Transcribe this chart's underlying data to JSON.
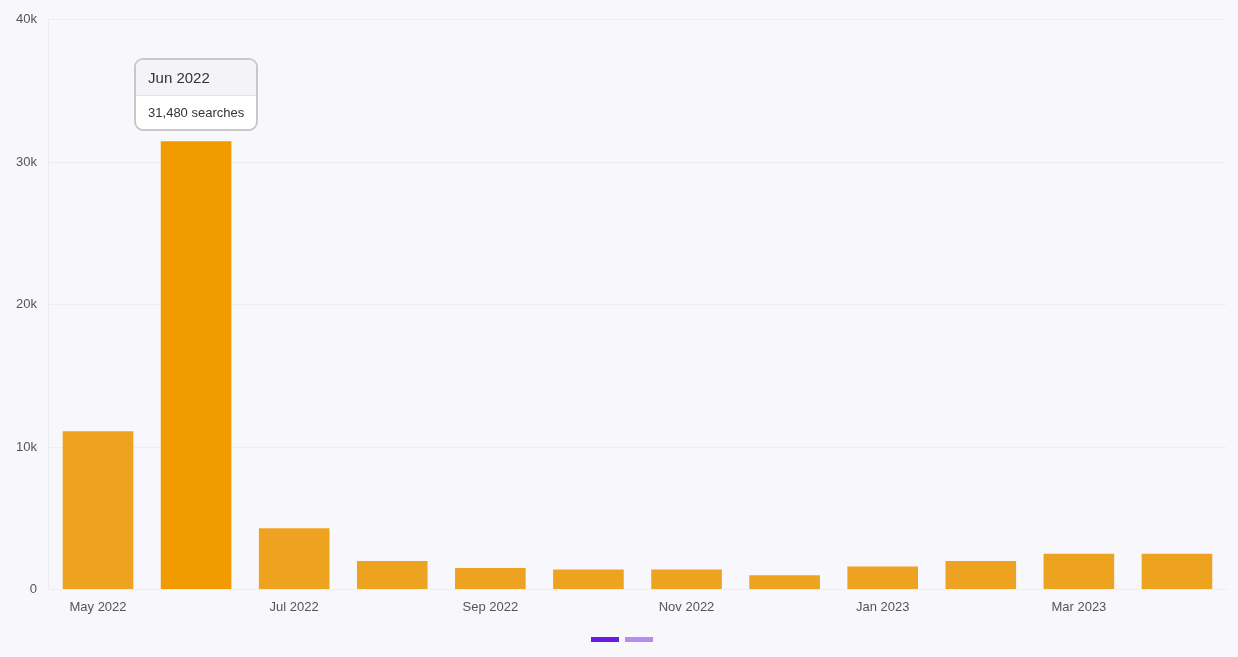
{
  "chart_data": {
    "type": "bar",
    "categories": [
      "May 2022",
      null,
      "Jul 2022",
      null,
      "Sep 2022",
      null,
      "Nov 2022",
      null,
      "Jan 2023",
      null,
      "Mar 2023",
      null
    ],
    "values": [
      11100,
      31480,
      4300,
      2000,
      1500,
      1400,
      1400,
      1000,
      1600,
      2000,
      2500,
      2500
    ],
    "colors": [
      "#eea320",
      "#f29b00",
      "#eea320",
      "#eea320",
      "#eea320",
      "#eea320",
      "#eea320",
      "#eea320",
      "#eea320",
      "#eea320",
      "#eea320",
      "#eea320"
    ],
    "ylim": [
      0,
      40000
    ],
    "yticks": [
      {
        "value": 0,
        "label": "0"
      },
      {
        "value": 10000,
        "label": "10k"
      },
      {
        "value": 20000,
        "label": "20k"
      },
      {
        "value": 30000,
        "label": "30k"
      },
      {
        "value": 40000,
        "label": "40k"
      }
    ],
    "grid": "y",
    "legend": false,
    "annotations": [
      "Jun 2022",
      "31,480 searches"
    ]
  }
}
